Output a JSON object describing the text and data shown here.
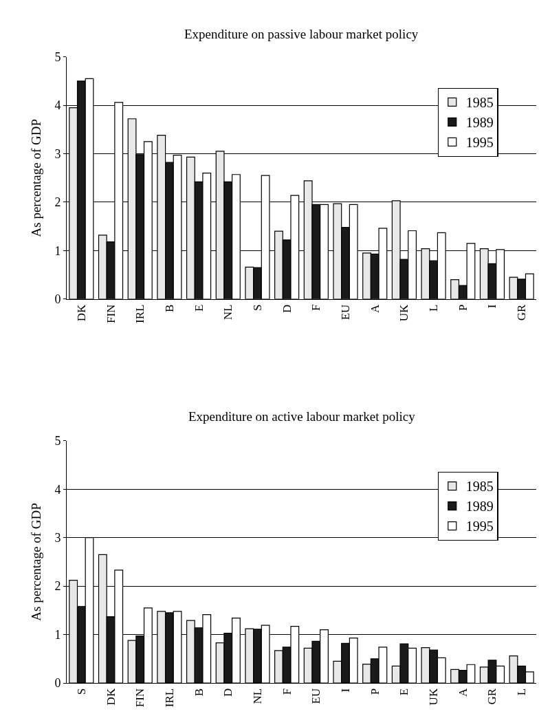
{
  "chart_data": [
    {
      "type": "bar",
      "title": "Expenditure on passive labour market policy",
      "ylabel": "As percentage of GDP",
      "categories": [
        "DK",
        "FIN",
        "IRL",
        "B",
        "E",
        "NL",
        "S",
        "D",
        "F",
        "EU",
        "A",
        "UK",
        "L",
        "P",
        "I",
        "GR"
      ],
      "series": [
        {
          "name": "1985",
          "color": "#e8e8e8",
          "values": [
            3.95,
            1.32,
            3.72,
            3.38,
            2.93,
            3.05,
            0.66,
            1.4,
            2.44,
            1.97,
            0.95,
            2.03,
            1.04,
            0.4,
            1.04,
            0.45
          ]
        },
        {
          "name": "1989",
          "color": "#1a1a1a",
          "values": [
            4.5,
            1.18,
            2.98,
            2.82,
            2.42,
            2.42,
            0.65,
            1.22,
            1.95,
            1.48,
            0.93,
            0.82,
            0.79,
            0.28,
            0.73,
            0.41
          ]
        },
        {
          "name": "1995",
          "color": "#ffffff",
          "values": [
            4.55,
            4.06,
            3.25,
            2.97,
            2.6,
            2.57,
            2.55,
            2.14,
            1.95,
            1.95,
            1.46,
            1.41,
            1.37,
            1.15,
            1.02,
            0.52
          ]
        }
      ],
      "ylim": [
        0,
        5
      ],
      "yticks": [
        0,
        1,
        2,
        3,
        4,
        5
      ],
      "grid": "y",
      "legend": "top right"
    },
    {
      "type": "bar",
      "title": "Expenditure on active labour market policy",
      "ylabel": "As percentage of GDP",
      "categories": [
        "S",
        "DK",
        "FIN",
        "IRL",
        "B",
        "D",
        "NL",
        "F",
        "EU",
        "I",
        "P",
        "E",
        "UK",
        "A",
        "GR",
        "L"
      ],
      "series": [
        {
          "name": "1985",
          "color": "#e8e8e8",
          "values": [
            2.12,
            2.65,
            0.88,
            1.48,
            1.29,
            0.83,
            1.12,
            0.67,
            0.72,
            0.45,
            0.39,
            0.35,
            0.73,
            0.28,
            0.33,
            0.56
          ]
        },
        {
          "name": "1989",
          "color": "#1a1a1a",
          "values": [
            1.58,
            1.37,
            0.97,
            1.45,
            1.14,
            1.03,
            1.11,
            0.74,
            0.86,
            0.82,
            0.5,
            0.81,
            0.68,
            0.26,
            0.47,
            0.35
          ]
        },
        {
          "name": "1995",
          "color": "#ffffff",
          "values": [
            3.0,
            2.33,
            1.55,
            1.48,
            1.41,
            1.34,
            1.19,
            1.17,
            1.1,
            0.93,
            0.74,
            0.72,
            0.52,
            0.38,
            0.35,
            0.23
          ]
        }
      ],
      "ylim": [
        0,
        5
      ],
      "yticks": [
        0,
        1,
        2,
        3,
        4,
        5
      ],
      "grid": "y",
      "legend": "top right"
    }
  ]
}
